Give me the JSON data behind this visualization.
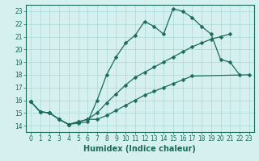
{
  "line1_x": [
    0,
    1,
    2,
    3,
    4,
    5,
    6,
    7,
    8,
    9,
    10,
    11,
    12,
    13,
    14,
    15,
    16,
    17,
    18,
    19,
    20,
    21,
    22
  ],
  "line1_y": [
    15.9,
    15.1,
    15.0,
    14.5,
    14.1,
    14.2,
    14.3,
    16.0,
    18.0,
    19.4,
    20.5,
    21.1,
    22.2,
    21.8,
    21.2,
    23.2,
    23.0,
    22.5,
    21.8,
    21.2,
    19.2,
    19.0,
    18.0
  ],
  "line2_x": [
    0,
    1,
    2,
    3,
    4,
    5,
    6,
    7,
    8,
    9,
    10,
    11,
    12,
    13,
    14,
    15,
    16,
    17,
    18,
    19,
    20,
    21
  ],
  "line2_y": [
    15.9,
    15.1,
    15.0,
    14.5,
    14.1,
    14.3,
    14.5,
    15.0,
    15.8,
    16.5,
    17.2,
    17.8,
    18.2,
    18.6,
    19.0,
    19.4,
    19.8,
    20.2,
    20.5,
    20.8,
    21.0,
    21.2
  ],
  "line3_x": [
    0,
    1,
    2,
    3,
    4,
    5,
    6,
    7,
    8,
    9,
    10,
    11,
    12,
    13,
    14,
    15,
    16,
    17,
    23
  ],
  "line3_y": [
    15.9,
    15.1,
    15.0,
    14.5,
    14.1,
    14.3,
    14.5,
    14.5,
    14.8,
    15.2,
    15.6,
    16.0,
    16.4,
    16.7,
    17.0,
    17.3,
    17.6,
    17.9,
    18.0
  ],
  "color": "#1a6b5a",
  "bg_color": "#d6f0f0",
  "grid_color": "#a8d8d8",
  "xlabel": "Humidex (Indice chaleur)",
  "xlim": [
    -0.5,
    23.5
  ],
  "ylim": [
    13.5,
    23.5
  ],
  "yticks": [
    14,
    15,
    16,
    17,
    18,
    19,
    20,
    21,
    22,
    23
  ],
  "xticks": [
    0,
    1,
    2,
    3,
    4,
    5,
    6,
    7,
    8,
    9,
    10,
    11,
    12,
    13,
    14,
    15,
    16,
    17,
    18,
    19,
    20,
    21,
    22,
    23
  ],
  "markersize": 2.5,
  "linewidth": 0.9,
  "tick_fontsize": 5.5,
  "xlabel_fontsize": 7.0
}
